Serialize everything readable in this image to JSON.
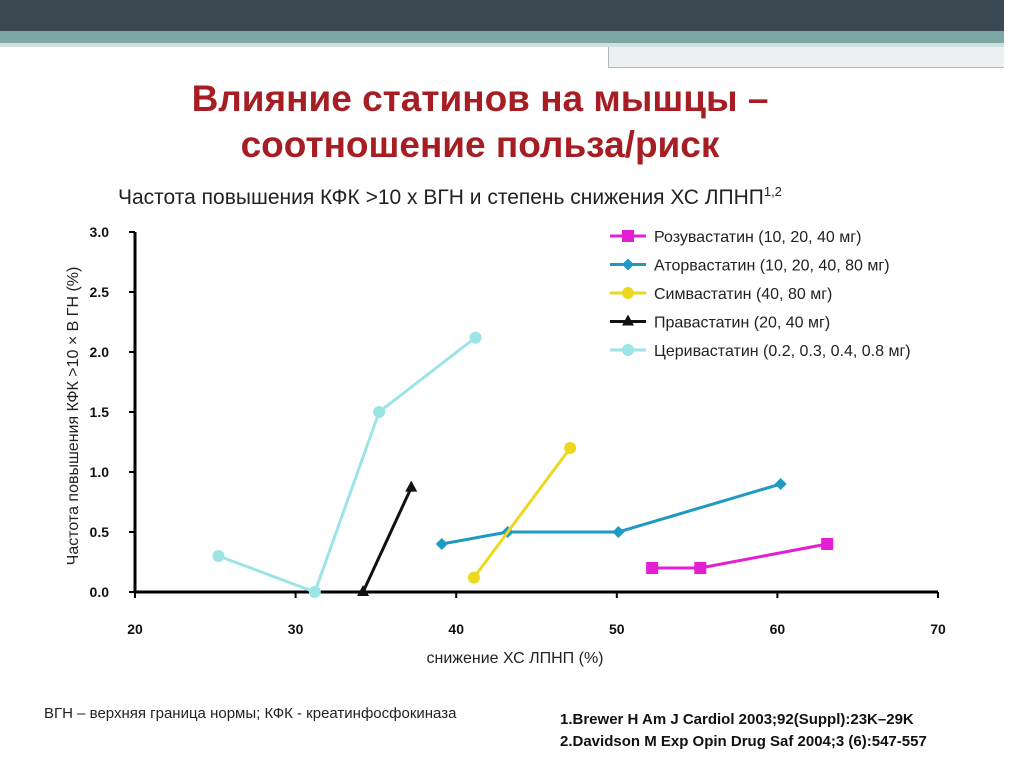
{
  "slide": {
    "title_line1": "Влияние статинов на мышцы –",
    "title_line2": "соотношение польза/риск",
    "subtitle": "Частота повышения КФК >10 х ВГН и степень снижения ХС ЛПНП",
    "subtitle_sup": "1,2",
    "note": "ВГН – верхняя граница нормы; КФК - креатинфосфокиназа",
    "refs": [
      "1.Brewer H Am J Cardiol 2003;92(Suppl):23K–29K",
      "2.Davidson M Exp Opin Drug Saf 2004;3 (6):547-557"
    ],
    "colors": {
      "title": "#a61d24",
      "topbar": "#3c4952",
      "band": "#7da7a4"
    }
  },
  "chart_data": {
    "type": "line",
    "xlabel": "снижение ХС ЛПНП (%)",
    "ylabel": "Частота повышения КФК >10 × В ГН (%)",
    "xlim": [
      20,
      70
    ],
    "ylim": [
      0,
      3
    ],
    "xticks": [
      "20",
      "30",
      "40",
      "50",
      "60",
      "70"
    ],
    "yticks": [
      "0.0",
      "0.5",
      "1.0",
      "1.5",
      "2.0",
      "2.5",
      "3.0"
    ],
    "grid": false,
    "legend_position": "top-right",
    "series": [
      {
        "name": "Розувастатин (10, 20, 40 мг)",
        "color": "#e41ed2",
        "marker": "square",
        "points": [
          [
            52.2,
            0.2
          ],
          [
            55.2,
            0.2
          ],
          [
            63.1,
            0.4
          ]
        ]
      },
      {
        "name": "Аторвастатин (10, 20, 40, 80 мг)",
        "color": "#1d99c4",
        "marker": "diamond",
        "points": [
          [
            39.1,
            0.4
          ],
          [
            43.2,
            0.5
          ],
          [
            50.1,
            0.5
          ],
          [
            60.2,
            0.9
          ]
        ]
      },
      {
        "name": "Симвастатин (40, 80 мг)",
        "color": "#ecd91f",
        "marker": "circle",
        "points": [
          [
            41.1,
            0.12
          ],
          [
            47.1,
            1.2
          ]
        ]
      },
      {
        "name": "Правастатин (20, 40 мг)",
        "color": "#111111",
        "marker": "triangle",
        "points": [
          [
            34.2,
            0.0
          ],
          [
            37.2,
            0.87
          ]
        ]
      },
      {
        "name": "Церивастатин (0.2, 0.3, 0.4, 0.8 мг)",
        "color": "#9ce4e6",
        "marker": "circle",
        "points": [
          [
            25.2,
            0.3
          ],
          [
            31.2,
            0.0
          ],
          [
            35.2,
            1.5
          ],
          [
            41.2,
            2.12
          ]
        ]
      }
    ]
  }
}
